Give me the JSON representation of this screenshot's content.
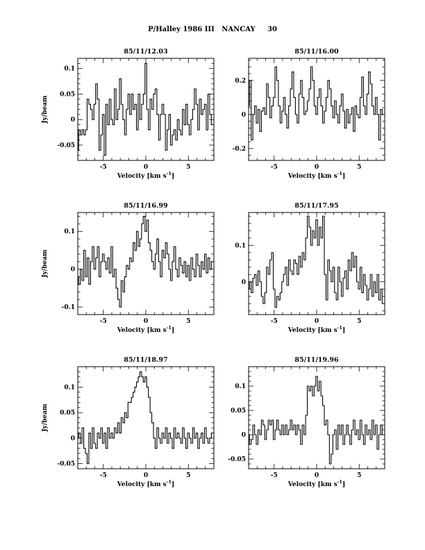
{
  "title": "P/Halley 1986 III   NANCAY     30",
  "chart_data": [
    {
      "type": "line",
      "title": "85/11/12.03",
      "xlabel": "Velocity [km s",
      "xlabel_sup": "-1",
      "xlabel_end": "]",
      "ylabel": "Jy/beam",
      "xlim": [
        -8,
        8
      ],
      "ylim": [
        -0.08,
        0.12
      ],
      "xticks": [
        -5,
        0,
        5
      ],
      "yticks": [
        -0.05,
        0,
        0.05,
        0.1
      ],
      "ytick_labels": [
        "-0.05",
        "0",
        "0.05",
        "0.1"
      ],
      "x": [
        -8.0,
        -7.8,
        -7.6,
        -7.4,
        -7.2,
        -7.0,
        -6.8,
        -6.6,
        -6.4,
        -6.2,
        -6.0,
        -5.8,
        -5.6,
        -5.4,
        -5.2,
        -5.0,
        -4.8,
        -4.6,
        -4.4,
        -4.2,
        -4.0,
        -3.8,
        -3.6,
        -3.4,
        -3.2,
        -3.0,
        -2.8,
        -2.6,
        -2.4,
        -2.2,
        -2.0,
        -1.8,
        -1.6,
        -1.4,
        -1.2,
        -1.0,
        -0.8,
        -0.6,
        -0.4,
        -0.2,
        0.0,
        0.2,
        0.4,
        0.6,
        0.8,
        1.0,
        1.2,
        1.4,
        1.6,
        1.8,
        2.0,
        2.2,
        2.4,
        2.6,
        2.8,
        3.0,
        3.2,
        3.4,
        3.6,
        3.8,
        4.0,
        4.2,
        4.4,
        4.6,
        4.8,
        5.0,
        5.2,
        5.4,
        5.6,
        5.8,
        6.0,
        6.2,
        6.4,
        6.6,
        6.8,
        7.0,
        7.2,
        7.4,
        7.6,
        7.8
      ],
      "y": [
        -0.06,
        -0.02,
        -0.03,
        -0.02,
        -0.03,
        -0.02,
        0.04,
        0.03,
        0.02,
        0.0,
        0.03,
        0.07,
        0.04,
        -0.06,
        -0.03,
        0.01,
        -0.07,
        0.03,
        -0.01,
        0.04,
        0.0,
        -0.01,
        0.06,
        0.0,
        0.02,
        0.08,
        0.03,
        0.0,
        -0.03,
        0.02,
        0.05,
        0.01,
        0.05,
        0.02,
        0.03,
        -0.02,
        0.05,
        0.0,
        0.03,
        0.05,
        0.11,
        0.02,
        -0.02,
        0.04,
        0.02,
        0.05,
        0.06,
        0.01,
        -0.04,
        0.01,
        0.03,
        0.01,
        -0.06,
        -0.02,
        0.01,
        -0.05,
        -0.03,
        -0.02,
        -0.04,
        0.0,
        -0.02,
        -0.03,
        0.02,
        -0.01,
        0.03,
        -0.01,
        -0.03,
        0.0,
        0.02,
        0.06,
        0.03,
        -0.02,
        0.04,
        0.01,
        0.02,
        0.03,
        -0.02,
        0.05,
        0.01,
        -0.01
      ]
    },
    {
      "type": "line",
      "title": "85/11/16.00",
      "xlabel": "Velocity [km s",
      "xlabel_sup": "-1",
      "xlabel_end": "]",
      "ylabel": "",
      "xlim": [
        -8,
        8
      ],
      "ylim": [
        -0.27,
        0.33
      ],
      "xticks": [
        -5,
        0,
        5
      ],
      "yticks": [
        -0.2,
        0,
        0.2
      ],
      "ytick_labels": [
        "-0.2",
        "0",
        "0.2"
      ],
      "x": [
        -8.0,
        -7.8,
        -7.6,
        -7.4,
        -7.2,
        -7.0,
        -6.8,
        -6.6,
        -6.4,
        -6.2,
        -6.0,
        -5.8,
        -5.6,
        -5.4,
        -5.2,
        -5.0,
        -4.8,
        -4.6,
        -4.4,
        -4.2,
        -4.0,
        -3.8,
        -3.6,
        -3.4,
        -3.2,
        -3.0,
        -2.8,
        -2.6,
        -2.4,
        -2.2,
        -2.0,
        -1.8,
        -1.6,
        -1.4,
        -1.2,
        -1.0,
        -0.8,
        -0.6,
        -0.4,
        -0.2,
        0.0,
        0.2,
        0.4,
        0.6,
        0.8,
        1.0,
        1.2,
        1.4,
        1.6,
        1.8,
        2.0,
        2.2,
        2.4,
        2.6,
        2.8,
        3.0,
        3.2,
        3.4,
        3.6,
        3.8,
        4.0,
        4.2,
        4.4,
        4.6,
        4.8,
        5.0,
        5.2,
        5.4,
        5.6,
        5.8,
        6.0,
        6.2,
        6.4,
        6.6,
        6.8,
        7.0,
        7.2,
        7.4,
        7.6,
        7.8
      ],
      "y": [
        0.05,
        0.2,
        -0.15,
        0.0,
        0.05,
        -0.05,
        0.03,
        -0.1,
        0.02,
        0.04,
        0.0,
        0.18,
        0.1,
        -0.02,
        0.05,
        0.1,
        0.28,
        0.2,
        0.05,
        -0.05,
        0.02,
        0.1,
        0.0,
        -0.08,
        0.05,
        0.15,
        0.25,
        0.1,
        0.0,
        -0.05,
        0.12,
        0.2,
        0.1,
        0.0,
        0.02,
        0.08,
        0.15,
        0.28,
        0.2,
        0.05,
        0.0,
        0.1,
        0.15,
        0.05,
        -0.05,
        0.02,
        0.1,
        0.2,
        0.15,
        0.05,
        -0.02,
        0.08,
        0.0,
        -0.05,
        0.05,
        0.12,
        0.02,
        -0.08,
        0.03,
        -0.05,
        0.0,
        0.04,
        -0.1,
        0.05,
        0.0,
        -0.02,
        0.1,
        0.22,
        0.05,
        0.0,
        0.12,
        0.25,
        0.18,
        0.05,
        0.0,
        0.1,
        0.0,
        -0.15,
        0.03,
        0.0
      ]
    },
    {
      "type": "line",
      "title": "85/11/16.99",
      "xlabel": "Velocity [km s",
      "xlabel_sup": "-1",
      "xlabel_end": "]",
      "ylabel": "Jy/beam",
      "xlim": [
        -8,
        8
      ],
      "ylim": [
        -0.12,
        0.15
      ],
      "xticks": [
        -5,
        0,
        5
      ],
      "yticks": [
        -0.1,
        0,
        0.1
      ],
      "ytick_labels": [
        "-0.1",
        "0",
        "0.1"
      ],
      "x": [
        -8.0,
        -7.8,
        -7.6,
        -7.4,
        -7.2,
        -7.0,
        -6.8,
        -6.6,
        -6.4,
        -6.2,
        -6.0,
        -5.8,
        -5.6,
        -5.4,
        -5.2,
        -5.0,
        -4.8,
        -4.6,
        -4.4,
        -4.2,
        -4.0,
        -3.8,
        -3.6,
        -3.4,
        -3.2,
        -3.0,
        -2.8,
        -2.6,
        -2.4,
        -2.2,
        -2.0,
        -1.8,
        -1.6,
        -1.4,
        -1.2,
        -1.0,
        -0.8,
        -0.6,
        -0.4,
        -0.2,
        0.0,
        0.2,
        0.4,
        0.6,
        0.8,
        1.0,
        1.2,
        1.4,
        1.6,
        1.8,
        2.0,
        2.2,
        2.4,
        2.6,
        2.8,
        3.0,
        3.2,
        3.4,
        3.6,
        3.8,
        4.0,
        4.2,
        4.4,
        4.6,
        4.8,
        5.0,
        5.2,
        5.4,
        5.6,
        5.8,
        6.0,
        6.2,
        6.4,
        6.6,
        6.8,
        7.0,
        7.2,
        7.4,
        7.6,
        7.8
      ],
      "y": [
        -0.02,
        -0.04,
        0.0,
        -0.03,
        0.05,
        -0.02,
        0.03,
        -0.04,
        0.02,
        0.06,
        0.0,
        0.03,
        0.06,
        -0.02,
        0.02,
        0.04,
        0.02,
        0.0,
        0.03,
        -0.01,
        0.06,
        -0.02,
        0.0,
        -0.05,
        -0.08,
        -0.1,
        -0.03,
        -0.06,
        -0.02,
        0.01,
        0.0,
        0.03,
        0.02,
        0.07,
        0.05,
        0.1,
        0.06,
        0.08,
        0.12,
        0.14,
        0.1,
        0.13,
        0.07,
        0.05,
        0.02,
        0.0,
        0.04,
        0.08,
        0.02,
        -0.02,
        0.05,
        0.03,
        0.07,
        0.04,
        0.0,
        -0.03,
        0.02,
        0.06,
        0.0,
        -0.02,
        0.03,
        0.01,
        -0.01,
        0.02,
        -0.02,
        0.01,
        -0.03,
        0.03,
        0.0,
        -0.02,
        0.04,
        0.01,
        -0.02,
        0.02,
        0.0,
        0.04,
        -0.01,
        0.03,
        0.0,
        0.02
      ]
    },
    {
      "type": "line",
      "title": "85/11/17.95",
      "xlabel": "Velocity [km s",
      "xlabel_sup": "-1",
      "xlabel_end": "]",
      "ylabel": "",
      "xlim": [
        -8,
        8
      ],
      "ylim": [
        -0.09,
        0.19
      ],
      "xticks": [
        -5,
        0,
        5
      ],
      "yticks": [
        0,
        0.1
      ],
      "ytick_labels": [
        "0",
        "0.1"
      ],
      "x": [
        -8.0,
        -7.8,
        -7.6,
        -7.4,
        -7.2,
        -7.0,
        -6.8,
        -6.6,
        -6.4,
        -6.2,
        -6.0,
        -5.8,
        -5.6,
        -5.4,
        -5.2,
        -5.0,
        -4.8,
        -4.6,
        -4.4,
        -4.2,
        -4.0,
        -3.8,
        -3.6,
        -3.4,
        -3.2,
        -3.0,
        -2.8,
        -2.6,
        -2.4,
        -2.2,
        -2.0,
        -1.8,
        -1.6,
        -1.4,
        -1.2,
        -1.0,
        -0.8,
        -0.6,
        -0.4,
        -0.2,
        0.0,
        0.2,
        0.4,
        0.6,
        0.8,
        1.0,
        1.2,
        1.4,
        1.6,
        1.8,
        2.0,
        2.2,
        2.4,
        2.6,
        2.8,
        3.0,
        3.2,
        3.4,
        3.6,
        3.8,
        4.0,
        4.2,
        4.4,
        4.6,
        4.8,
        5.0,
        5.2,
        5.4,
        5.6,
        5.8,
        6.0,
        6.2,
        6.4,
        6.6,
        6.8,
        7.0,
        7.2,
        7.4,
        7.6,
        7.8
      ],
      "y": [
        -0.02,
        0.0,
        -0.03,
        0.01,
        0.02,
        -0.01,
        0.03,
        0.0,
        -0.04,
        -0.06,
        -0.03,
        0.04,
        0.02,
        0.06,
        0.08,
        -0.02,
        -0.07,
        -0.04,
        -0.05,
        -0.03,
        0.0,
        0.02,
        0.04,
        -0.01,
        0.06,
        0.03,
        0.02,
        0.06,
        0.05,
        0.02,
        0.07,
        0.04,
        0.08,
        0.06,
        0.12,
        0.18,
        0.15,
        0.1,
        0.14,
        0.12,
        0.17,
        0.1,
        0.15,
        0.12,
        0.18,
        0.02,
        -0.05,
        0.06,
        0.03,
        0.0,
        0.04,
        -0.03,
        -0.05,
        0.04,
        0.0,
        -0.04,
        0.01,
        0.03,
        -0.02,
        0.06,
        0.03,
        0.08,
        0.04,
        0.07,
        0.0,
        -0.02,
        0.04,
        -0.03,
        0.02,
        -0.01,
        -0.05,
        -0.02,
        0.02,
        -0.04,
        0.0,
        -0.03,
        0.02,
        -0.05,
        -0.02,
        -0.06
      ]
    },
    {
      "type": "line",
      "title": "85/11/18.97",
      "xlabel": "Velocity [km s",
      "xlabel_sup": "-1",
      "xlabel_end": "]",
      "ylabel": "Jy/beam",
      "xlim": [
        -8,
        8
      ],
      "ylim": [
        -0.06,
        0.14
      ],
      "xticks": [
        -5,
        0,
        5
      ],
      "yticks": [
        -0.05,
        0,
        0.05,
        0.1
      ],
      "ytick_labels": [
        "-0.05",
        "0",
        "0.05",
        "0.1"
      ],
      "x": [
        -8.0,
        -7.8,
        -7.6,
        -7.4,
        -7.2,
        -7.0,
        -6.8,
        -6.6,
        -6.4,
        -6.2,
        -6.0,
        -5.8,
        -5.6,
        -5.4,
        -5.2,
        -5.0,
        -4.8,
        -4.6,
        -4.4,
        -4.2,
        -4.0,
        -3.8,
        -3.6,
        -3.4,
        -3.2,
        -3.0,
        -2.8,
        -2.6,
        -2.4,
        -2.2,
        -2.0,
        -1.8,
        -1.6,
        -1.4,
        -1.2,
        -1.0,
        -0.8,
        -0.6,
        -0.4,
        -0.2,
        0.0,
        0.2,
        0.4,
        0.6,
        0.8,
        1.0,
        1.2,
        1.4,
        1.6,
        1.8,
        2.0,
        2.2,
        2.4,
        2.6,
        2.8,
        3.0,
        3.2,
        3.4,
        3.6,
        3.8,
        4.0,
        4.2,
        4.4,
        4.6,
        4.8,
        5.0,
        5.2,
        5.4,
        5.6,
        5.8,
        6.0,
        6.2,
        6.4,
        6.6,
        6.8,
        7.0,
        7.2,
        7.4,
        7.6,
        7.8
      ],
      "y": [
        0.0,
        0.01,
        -0.01,
        0.02,
        -0.02,
        -0.03,
        -0.05,
        0.01,
        -0.02,
        0.02,
        -0.01,
        -0.02,
        0.01,
        0.0,
        0.02,
        -0.01,
        0.01,
        -0.02,
        0.02,
        0.0,
        0.01,
        0.0,
        0.02,
        0.01,
        0.03,
        0.01,
        0.04,
        0.03,
        0.05,
        0.04,
        0.07,
        0.07,
        0.08,
        0.09,
        0.1,
        0.11,
        0.12,
        0.13,
        0.12,
        0.11,
        0.12,
        0.1,
        0.08,
        0.05,
        0.03,
        0.0,
        -0.02,
        0.02,
        0.0,
        -0.01,
        0.01,
        0.0,
        0.02,
        -0.01,
        0.01,
        0.0,
        -0.02,
        0.02,
        0.0,
        0.01,
        0.0,
        -0.01,
        0.02,
        0.0,
        -0.02,
        0.01,
        0.0,
        -0.01,
        0.02,
        0.0,
        0.01,
        -0.02,
        0.0,
        0.01,
        -0.01,
        0.02,
        0.0,
        -0.01,
        0.0,
        0.01
      ]
    },
    {
      "type": "line",
      "title": "85/11/19.96",
      "xlabel": "Velocity [km s",
      "xlabel_sup": "-1",
      "xlabel_end": "]",
      "ylabel": "",
      "xlim": [
        -8,
        8
      ],
      "ylim": [
        -0.07,
        0.14
      ],
      "xticks": [
        -5,
        0,
        5
      ],
      "yticks": [
        -0.05,
        0,
        0.05,
        0.1
      ],
      "ytick_labels": [
        "-0.05",
        "0",
        "0.05",
        "0.1"
      ],
      "x": [
        -8.0,
        -7.8,
        -7.6,
        -7.4,
        -7.2,
        -7.0,
        -6.8,
        -6.6,
        -6.4,
        -6.2,
        -6.0,
        -5.8,
        -5.6,
        -5.4,
        -5.2,
        -5.0,
        -4.8,
        -4.6,
        -4.4,
        -4.2,
        -4.0,
        -3.8,
        -3.6,
        -3.4,
        -3.2,
        -3.0,
        -2.8,
        -2.6,
        -2.4,
        -2.2,
        -2.0,
        -1.8,
        -1.6,
        -1.4,
        -1.2,
        -1.0,
        -0.8,
        -0.6,
        -0.4,
        -0.2,
        0.0,
        0.2,
        0.4,
        0.6,
        0.8,
        1.0,
        1.2,
        1.4,
        1.6,
        1.8,
        2.0,
        2.2,
        2.4,
        2.6,
        2.8,
        3.0,
        3.2,
        3.4,
        3.6,
        3.8,
        4.0,
        4.2,
        4.4,
        4.6,
        4.8,
        5.0,
        5.2,
        5.4,
        5.6,
        5.8,
        6.0,
        6.2,
        6.4,
        6.6,
        6.8,
        7.0,
        7.2,
        7.4,
        7.6,
        7.8
      ],
      "y": [
        0.0,
        -0.02,
        -0.01,
        0.02,
        0.0,
        -0.02,
        0.01,
        0.0,
        0.03,
        0.02,
        -0.01,
        0.01,
        0.03,
        0.02,
        0.03,
        -0.01,
        0.01,
        0.03,
        0.01,
        0.0,
        0.02,
        0.0,
        0.02,
        0.0,
        0.01,
        0.03,
        0.01,
        0.02,
        0.0,
        0.02,
        0.01,
        -0.02,
        0.02,
        0.0,
        0.04,
        0.1,
        0.09,
        0.1,
        0.08,
        0.1,
        0.12,
        0.09,
        0.11,
        0.08,
        0.06,
        0.02,
        0.03,
        0.0,
        -0.06,
        -0.04,
        0.0,
        0.01,
        -0.03,
        0.02,
        0.0,
        0.02,
        -0.02,
        0.0,
        0.02,
        0.0,
        -0.02,
        0.01,
        0.03,
        0.0,
        0.01,
        -0.01,
        0.03,
        0.0,
        -0.02,
        0.02,
        0.0,
        0.01,
        -0.01,
        0.03,
        0.0,
        0.02,
        -0.03,
        0.0,
        0.02,
        0.0
      ]
    }
  ]
}
